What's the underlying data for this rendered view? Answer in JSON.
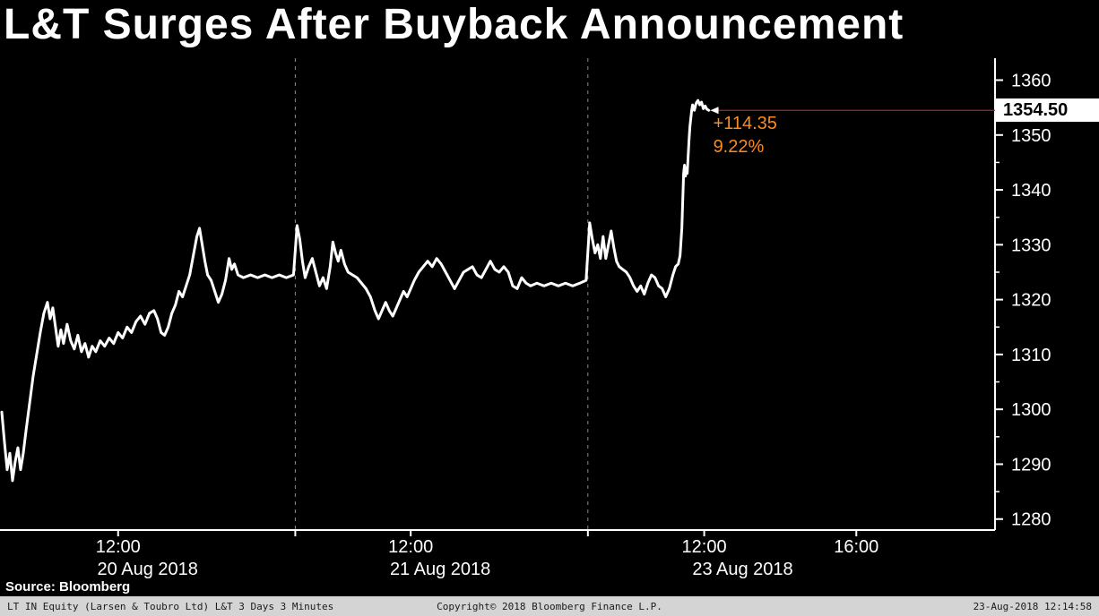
{
  "title": "L&T Surges After Buyback Announcement",
  "source_label": "Source: Bloomberg",
  "footer": {
    "left": "LT IN Equity (Larsen & Toubro Ltd) L&T 3 Days 3 Minutes",
    "center": "Copyright© 2018 Bloomberg Finance L.P.",
    "right": "23-Aug-2018 12:14:58"
  },
  "last_price": {
    "label": "1354.50",
    "value": 1354.5,
    "change_label": "+114.35",
    "pct_label": "9.22%"
  },
  "colors": {
    "background": "#000000",
    "line": "#ffffff",
    "axis": "#ffffff",
    "text": "#ffffff",
    "annotation": "#fb8b1e",
    "last_price_line": "#9e2b25",
    "separator": "#8c8c8c",
    "footer_bg": "#d4d4d4",
    "footer_text": "#1a1a1a"
  },
  "chart_data": {
    "type": "line",
    "title": "L&T Surges After Buyback Announcement",
    "xlabel": "",
    "ylabel": "",
    "ylim": [
      1278,
      1364
    ],
    "y_ticks": [
      1280,
      1290,
      1300,
      1310,
      1320,
      1330,
      1340,
      1350,
      1360
    ],
    "x_domain": [
      0,
      1110
    ],
    "day_separators_x": [
      328,
      655
    ],
    "time_ticks": [
      {
        "label": "12:00",
        "x": 130
      },
      {
        "label": "12:00",
        "x": 457
      },
      {
        "label": "12:00",
        "x": 785
      },
      {
        "label": "16:00",
        "x": 955
      }
    ],
    "date_labels": [
      {
        "label": "20 Aug 2018",
        "x": 163
      },
      {
        "label": "21 Aug 2018",
        "x": 490
      },
      {
        "label": "23 Aug 2018",
        "x": 828
      }
    ],
    "last_point": [
      790,
      1354.5
    ],
    "series": [
      {
        "name": "LT IN Equity price",
        "color": "#ffffff",
        "points": [
          [
            0,
            1299.5
          ],
          [
            3,
            1294
          ],
          [
            6,
            1289
          ],
          [
            9,
            1292
          ],
          [
            12,
            1287
          ],
          [
            15,
            1290.5
          ],
          [
            18,
            1293
          ],
          [
            21,
            1289
          ],
          [
            24,
            1292
          ],
          [
            27,
            1296
          ],
          [
            31,
            1301
          ],
          [
            35,
            1306
          ],
          [
            39,
            1310
          ],
          [
            43,
            1314
          ],
          [
            47,
            1317.5
          ],
          [
            51,
            1319.5
          ],
          [
            54,
            1316.5
          ],
          [
            57,
            1318.5
          ],
          [
            60,
            1315
          ],
          [
            63,
            1311.5
          ],
          [
            66,
            1314.5
          ],
          [
            69,
            1312
          ],
          [
            73,
            1315.5
          ],
          [
            77,
            1312.5
          ],
          [
            81,
            1311
          ],
          [
            85,
            1313.5
          ],
          [
            89,
            1310.5
          ],
          [
            93,
            1312
          ],
          [
            97,
            1309.5
          ],
          [
            101,
            1311.5
          ],
          [
            105,
            1310.5
          ],
          [
            110,
            1312.5
          ],
          [
            115,
            1311.5
          ],
          [
            120,
            1313
          ],
          [
            125,
            1312
          ],
          [
            130,
            1314
          ],
          [
            135,
            1313
          ],
          [
            140,
            1315
          ],
          [
            145,
            1314
          ],
          [
            150,
            1316
          ],
          [
            155,
            1317
          ],
          [
            160,
            1315.5
          ],
          [
            165,
            1317.5
          ],
          [
            170,
            1318
          ],
          [
            174,
            1316.5
          ],
          [
            178,
            1314
          ],
          [
            182,
            1313.5
          ],
          [
            186,
            1315
          ],
          [
            190,
            1317.5
          ],
          [
            194,
            1319
          ],
          [
            198,
            1321.5
          ],
          [
            202,
            1320.5
          ],
          [
            206,
            1322.5
          ],
          [
            210,
            1324.5
          ],
          [
            214,
            1328
          ],
          [
            218,
            1331.5
          ],
          [
            221,
            1333
          ],
          [
            224,
            1330
          ],
          [
            227,
            1327
          ],
          [
            230,
            1324.5
          ],
          [
            234,
            1323.5
          ],
          [
            238,
            1321.5
          ],
          [
            242,
            1319.5
          ],
          [
            246,
            1321
          ],
          [
            250,
            1323.5
          ],
          [
            254,
            1327.5
          ],
          [
            257,
            1325.5
          ],
          [
            260,
            1326.5
          ],
          [
            264,
            1324.5
          ],
          [
            270,
            1324
          ],
          [
            278,
            1324.5
          ],
          [
            286,
            1324
          ],
          [
            294,
            1324.5
          ],
          [
            302,
            1324
          ],
          [
            310,
            1324.5
          ],
          [
            318,
            1324
          ],
          [
            326,
            1324.5
          ],
          [
            330,
            1333.5
          ],
          [
            333,
            1331
          ],
          [
            336,
            1327
          ],
          [
            339,
            1324
          ],
          [
            343,
            1326
          ],
          [
            347,
            1327.5
          ],
          [
            351,
            1325
          ],
          [
            355,
            1322.5
          ],
          [
            359,
            1324
          ],
          [
            363,
            1322
          ],
          [
            367,
            1326
          ],
          [
            370,
            1330.5
          ],
          [
            373,
            1328.5
          ],
          [
            376,
            1327
          ],
          [
            379,
            1329
          ],
          [
            383,
            1326.5
          ],
          [
            387,
            1325
          ],
          [
            392,
            1324.5
          ],
          [
            397,
            1324
          ],
          [
            402,
            1323
          ],
          [
            407,
            1322
          ],
          [
            412,
            1320.5
          ],
          [
            417,
            1318
          ],
          [
            421,
            1316.5
          ],
          [
            425,
            1318
          ],
          [
            429,
            1319.5
          ],
          [
            433,
            1318
          ],
          [
            437,
            1317
          ],
          [
            441,
            1318.5
          ],
          [
            445,
            1320
          ],
          [
            449,
            1321.5
          ],
          [
            453,
            1320.5
          ],
          [
            457,
            1322
          ],
          [
            461,
            1323.5
          ],
          [
            466,
            1325
          ],
          [
            471,
            1326
          ],
          [
            476,
            1327
          ],
          [
            481,
            1326
          ],
          [
            486,
            1327.5
          ],
          [
            491,
            1326.5
          ],
          [
            496,
            1325
          ],
          [
            501,
            1323.5
          ],
          [
            506,
            1322
          ],
          [
            511,
            1323.5
          ],
          [
            516,
            1325
          ],
          [
            521,
            1325.5
          ],
          [
            526,
            1326
          ],
          [
            531,
            1324.5
          ],
          [
            536,
            1324
          ],
          [
            541,
            1325.5
          ],
          [
            546,
            1327
          ],
          [
            551,
            1325.5
          ],
          [
            556,
            1325
          ],
          [
            561,
            1326
          ],
          [
            566,
            1325
          ],
          [
            571,
            1322.5
          ],
          [
            576,
            1322
          ],
          [
            581,
            1324
          ],
          [
            586,
            1323
          ],
          [
            591,
            1322.5
          ],
          [
            598,
            1323
          ],
          [
            606,
            1322.5
          ],
          [
            614,
            1323
          ],
          [
            622,
            1322.5
          ],
          [
            630,
            1323
          ],
          [
            638,
            1322.5
          ],
          [
            646,
            1323
          ],
          [
            653,
            1323.5
          ],
          [
            657,
            1334
          ],
          [
            660,
            1331
          ],
          [
            663,
            1328.5
          ],
          [
            666,
            1330
          ],
          [
            669,
            1327.5
          ],
          [
            672,
            1331.5
          ],
          [
            675,
            1327.5
          ],
          [
            678,
            1330
          ],
          [
            681,
            1332.5
          ],
          [
            684,
            1329.5
          ],
          [
            687,
            1327
          ],
          [
            690,
            1326
          ],
          [
            694,
            1325.5
          ],
          [
            698,
            1325
          ],
          [
            702,
            1324
          ],
          [
            706,
            1322.5
          ],
          [
            710,
            1321.5
          ],
          [
            714,
            1322.5
          ],
          [
            718,
            1321
          ],
          [
            722,
            1323
          ],
          [
            726,
            1324.5
          ],
          [
            730,
            1324
          ],
          [
            734,
            1322.5
          ],
          [
            738,
            1322
          ],
          [
            742,
            1320.5
          ],
          [
            746,
            1322
          ],
          [
            750,
            1324.5
          ],
          [
            753,
            1326
          ],
          [
            756,
            1326.5
          ],
          [
            758,
            1328
          ],
          [
            760,
            1333
          ],
          [
            761,
            1338
          ],
          [
            762,
            1343
          ],
          [
            763,
            1344.5
          ],
          [
            764,
            1342.5
          ],
          [
            765,
            1344
          ],
          [
            766,
            1343
          ],
          [
            767,
            1346
          ],
          [
            768,
            1349
          ],
          [
            769,
            1351.5
          ],
          [
            770,
            1353
          ],
          [
            771,
            1354.5
          ],
          [
            772,
            1355.5
          ],
          [
            774,
            1354.5
          ],
          [
            776,
            1355.8
          ],
          [
            778,
            1356.3
          ],
          [
            780,
            1355.5
          ],
          [
            782,
            1356
          ],
          [
            784,
            1354.8
          ],
          [
            786,
            1355.3
          ],
          [
            788,
            1354.7
          ],
          [
            790,
            1354.5
          ]
        ]
      }
    ]
  }
}
